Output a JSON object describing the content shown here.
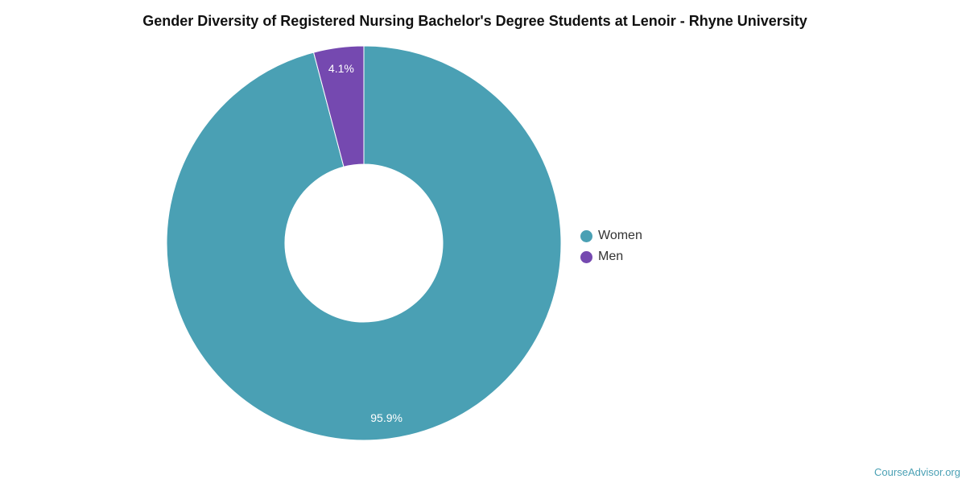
{
  "chart_data": {
    "type": "pie",
    "title": "Gender Diversity of Registered Nursing Bachelor's Degree Students at Lenoir - Rhyne University",
    "donut": true,
    "slices": [
      {
        "label": "Women",
        "value": 95.9,
        "display": "95.9%",
        "color": "#4aa0b4"
      },
      {
        "label": "Men",
        "value": 4.1,
        "display": "4.1%",
        "color": "#7549b0"
      }
    ],
    "legend_position": "right"
  },
  "legend": {
    "items": [
      {
        "label": "Women",
        "color": "#4aa0b4"
      },
      {
        "label": "Men",
        "color": "#7549b0"
      }
    ]
  },
  "watermark": "CourseAdvisor.org"
}
